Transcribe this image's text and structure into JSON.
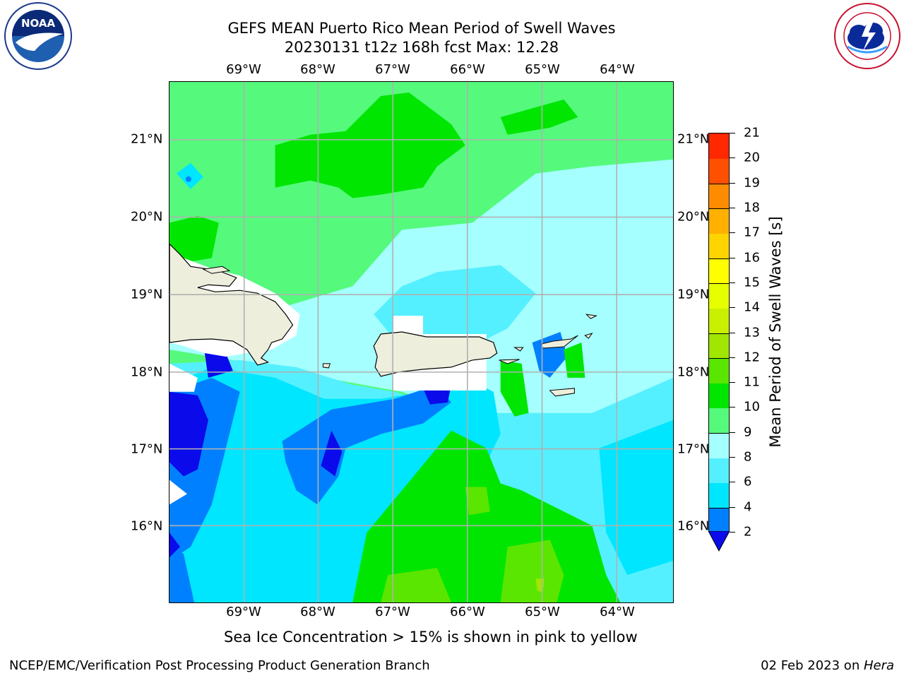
{
  "title": {
    "line1": "GEFS MEAN Puerto Rico Mean Period of Swell Waves",
    "line2": "20230131 t12z 168h fcst   Max: 12.28"
  },
  "lon_ticks": [
    "69°W",
    "68°W",
    "67°W",
    "66°W",
    "65°W",
    "64°W"
  ],
  "lat_ticks": [
    "21°N",
    "20°N",
    "19°N",
    "18°N",
    "17°N",
    "16°N"
  ],
  "colorbar": {
    "label": "Mean Period of Swell Waves [s]",
    "ticks": [
      "2",
      "4",
      "6",
      "8",
      "9",
      "10",
      "11",
      "12",
      "13",
      "14",
      "15",
      "16",
      "17",
      "18",
      "19",
      "20",
      "21"
    ],
    "colors": [
      "#0a0aeb",
      "#0080ff",
      "#00e6ff",
      "#55f0ff",
      "#a6ffff",
      "#55fa7d",
      "#00e600",
      "#5ae600",
      "#a0e600",
      "#c8f000",
      "#e6ff00",
      "#ffff00",
      "#ffd400",
      "#ffb000",
      "#ff8c00",
      "#ff5000",
      "#ff2800",
      "#ff0000"
    ],
    "extend": "min"
  },
  "note": "Sea Ice Concentration > 15% is shown in pink to yellow",
  "footer": {
    "left": "NCEP/EMC/Verification Post Processing Product Generation Branch",
    "right_prefix": "02 Feb 2023 on ",
    "right_host": "Hera"
  },
  "logos": {
    "noaa_text": "NOAA",
    "nws_text": "NATIONAL WEATHER SERVICE"
  }
}
